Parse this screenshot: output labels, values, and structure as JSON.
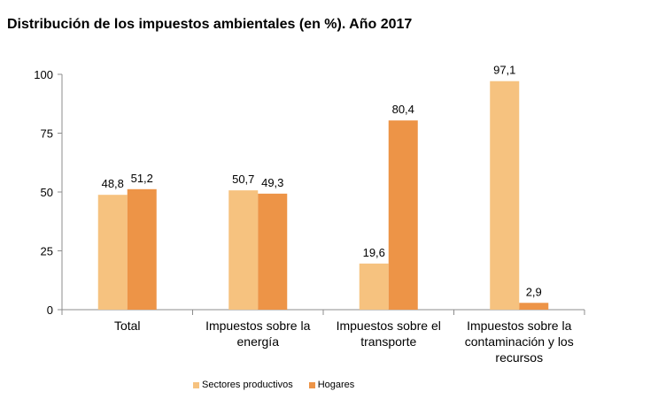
{
  "chart_data": {
    "type": "bar",
    "title": "Distribución de los impuestos ambientales (en %). Año 2017",
    "categories": [
      [
        "Total"
      ],
      [
        "Impuestos sobre la",
        "energía"
      ],
      [
        "Impuestos sobre el",
        "transporte"
      ],
      [
        "Impuestos sobre la",
        "contaminación y los",
        "recursos"
      ]
    ],
    "series": [
      {
        "name": "Sectores productivos",
        "color": "#f6c27f",
        "values": [
          48.8,
          50.7,
          19.6,
          97.1
        ],
        "labels": [
          "48,8",
          "50,7",
          "19,6",
          "97,1"
        ]
      },
      {
        "name": "Hogares",
        "color": "#ed9447",
        "values": [
          51.2,
          49.3,
          80.4,
          2.9
        ],
        "labels": [
          "51,2",
          "49,3",
          "80,4",
          "2,9"
        ]
      }
    ],
    "yticks": [
      0,
      25,
      50,
      75,
      100
    ],
    "ylim": [
      0,
      100
    ],
    "grid": false,
    "legend_position": "bottom-left"
  }
}
